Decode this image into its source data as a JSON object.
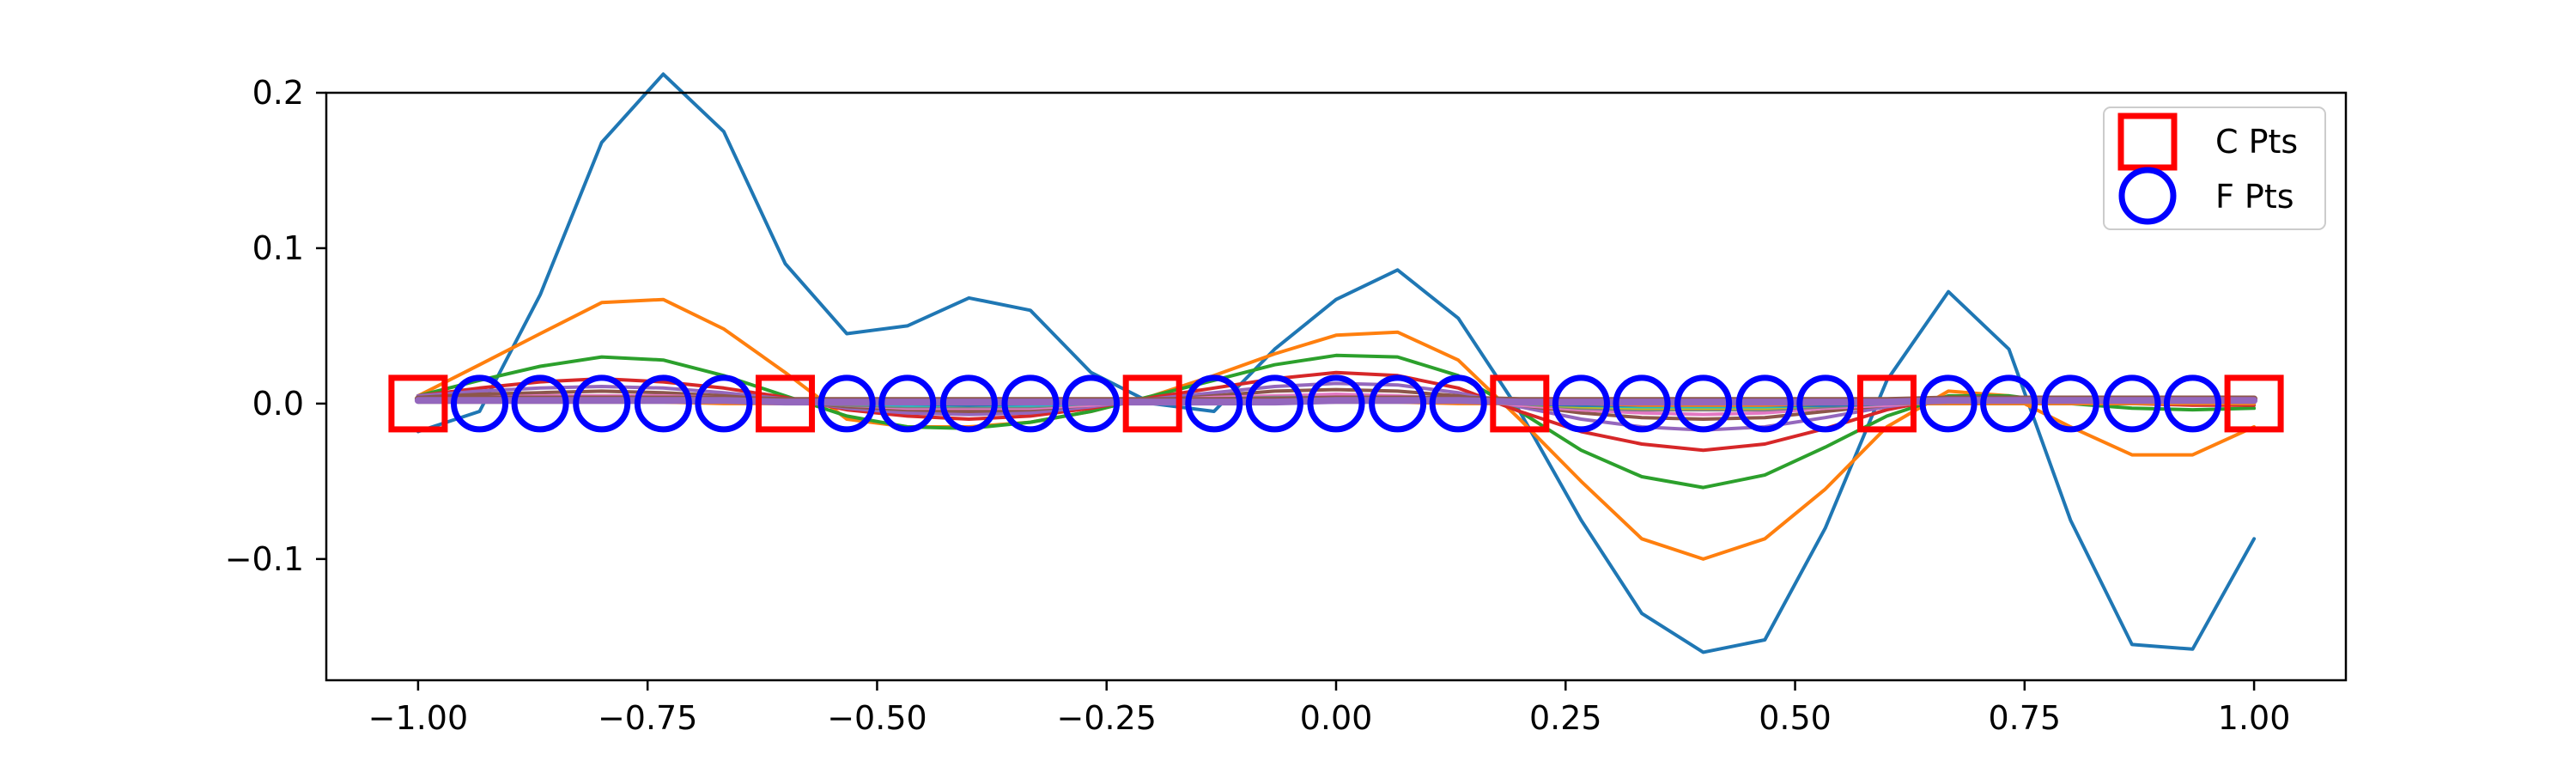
{
  "chart_data": {
    "type": "line",
    "title": "",
    "xlabel": "",
    "ylabel": "",
    "xlim": [
      -1.1,
      1.1
    ],
    "ylim": [
      -0.178,
      0.2
    ],
    "x_ticks": [
      -1.0,
      -0.75,
      -0.5,
      -0.25,
      0.0,
      0.25,
      0.5,
      0.75,
      1.0
    ],
    "x_tick_labels": [
      "−1.00",
      "−0.75",
      "−0.50",
      "−0.25",
      "0.00",
      "0.25",
      "0.50",
      "0.75",
      "1.00"
    ],
    "y_ticks": [
      -0.1,
      0.0,
      0.1,
      0.2
    ],
    "y_tick_labels": [
      "−0.1",
      "0.0",
      "0.1",
      "0.2"
    ],
    "grid": false,
    "legend": {
      "placement": "top-right",
      "entries": [
        {
          "label": "C Pts",
          "marker": "square",
          "color": "#ff0000"
        },
        {
          "label": "F Pts",
          "marker": "circle",
          "color": "#0000ff"
        }
      ]
    },
    "x": [
      -1.0,
      -0.933,
      -0.867,
      -0.8,
      -0.733,
      -0.667,
      -0.6,
      -0.533,
      -0.467,
      -0.4,
      -0.333,
      -0.267,
      -0.2,
      -0.133,
      -0.067,
      0.0,
      0.067,
      0.133,
      0.2,
      0.267,
      0.333,
      0.4,
      0.467,
      0.533,
      0.6,
      0.667,
      0.733,
      0.8,
      0.867,
      0.933,
      1.0
    ],
    "series": [
      {
        "color": "#1f77b4",
        "values": [
          -0.018,
          -0.005,
          0.07,
          0.168,
          0.212,
          0.175,
          0.09,
          0.045,
          0.05,
          0.068,
          0.06,
          0.02,
          0.0,
          -0.005,
          0.035,
          0.067,
          0.086,
          0.055,
          -0.005,
          -0.075,
          -0.135,
          -0.16,
          -0.152,
          -0.08,
          0.015,
          0.072,
          0.035,
          -0.075,
          -0.155,
          -0.158,
          -0.087
        ]
      },
      {
        "color": "#ff7f0e",
        "values": [
          0.005,
          0.025,
          0.045,
          0.065,
          0.067,
          0.048,
          0.02,
          -0.01,
          -0.015,
          -0.015,
          -0.012,
          -0.005,
          0.005,
          0.018,
          0.032,
          0.044,
          0.046,
          0.028,
          -0.01,
          -0.05,
          -0.087,
          -0.1,
          -0.087,
          -0.055,
          -0.015,
          0.008,
          0.005,
          -0.015,
          -0.033,
          -0.033,
          -0.015
        ]
      },
      {
        "color": "#2ca02c",
        "values": [
          0.005,
          0.015,
          0.024,
          0.03,
          0.028,
          0.018,
          0.005,
          -0.008,
          -0.015,
          -0.016,
          -0.012,
          -0.005,
          0.005,
          0.015,
          0.025,
          0.031,
          0.03,
          0.018,
          -0.005,
          -0.03,
          -0.047,
          -0.054,
          -0.046,
          -0.028,
          -0.008,
          0.005,
          0.005,
          0.0,
          -0.003,
          -0.004,
          -0.003
        ]
      },
      {
        "color": "#d62728",
        "values": [
          0.005,
          0.01,
          0.014,
          0.016,
          0.014,
          0.01,
          0.004,
          -0.004,
          -0.008,
          -0.01,
          -0.008,
          -0.003,
          0.004,
          0.01,
          0.016,
          0.02,
          0.018,
          0.01,
          -0.005,
          -0.018,
          -0.026,
          -0.03,
          -0.026,
          -0.016,
          -0.004,
          0.004,
          0.004,
          0.002,
          0.0,
          -0.001,
          -0.001
        ]
      },
      {
        "color": "#9467bd",
        "values": [
          0.005,
          0.008,
          0.01,
          0.011,
          0.01,
          0.007,
          0.003,
          -0.003,
          -0.006,
          -0.007,
          -0.006,
          -0.002,
          0.003,
          0.007,
          0.011,
          0.013,
          0.012,
          0.007,
          -0.002,
          -0.01,
          -0.015,
          -0.017,
          -0.015,
          -0.009,
          -0.002,
          0.003,
          0.003,
          0.002,
          0.001,
          0.0,
          0.0
        ]
      },
      {
        "color": "#8c564b",
        "values": [
          0.004,
          0.006,
          0.007,
          0.008,
          0.007,
          0.005,
          0.002,
          -0.002,
          -0.004,
          -0.005,
          -0.004,
          -0.001,
          0.002,
          0.005,
          0.008,
          0.009,
          0.008,
          0.005,
          -0.001,
          -0.006,
          -0.009,
          -0.01,
          -0.009,
          -0.005,
          -0.001,
          0.002,
          0.002,
          0.001,
          0.0,
          0.0,
          0.0
        ]
      },
      {
        "color": "#e377c2",
        "values": [
          0.003,
          0.004,
          0.005,
          0.005,
          0.005,
          0.004,
          0.002,
          -0.001,
          -0.003,
          -0.003,
          -0.003,
          -0.001,
          0.002,
          0.004,
          0.005,
          0.006,
          0.005,
          0.003,
          -0.001,
          -0.004,
          -0.006,
          -0.007,
          -0.006,
          -0.003,
          -0.001,
          0.001,
          0.001,
          0.001,
          0.0,
          0.0,
          0.0
        ]
      },
      {
        "color": "#7f7f7f",
        "values": [
          0.002,
          0.003,
          0.003,
          0.004,
          0.003,
          0.003,
          0.001,
          -0.001,
          -0.002,
          -0.002,
          -0.002,
          0.0,
          0.001,
          0.003,
          0.004,
          0.004,
          0.004,
          0.002,
          0.0,
          -0.003,
          -0.004,
          -0.004,
          -0.004,
          -0.002,
          0.0,
          0.001,
          0.001,
          0.0,
          0.0,
          0.0,
          0.0
        ]
      },
      {
        "color": "#bcbd22",
        "values": [
          0.002,
          0.002,
          0.002,
          0.003,
          0.002,
          0.002,
          0.001,
          0.0,
          -0.001,
          -0.001,
          -0.001,
          0.0,
          0.001,
          0.002,
          0.002,
          0.003,
          0.003,
          0.002,
          0.0,
          -0.002,
          -0.003,
          -0.003,
          -0.003,
          -0.001,
          0.0,
          0.001,
          0.001,
          0.0,
          0.0,
          0.0,
          0.0
        ]
      },
      {
        "color": "#17becf",
        "values": [
          0.001,
          0.002,
          0.002,
          0.002,
          0.002,
          0.001,
          0.001,
          0.0,
          -0.001,
          -0.001,
          -0.001,
          0.0,
          0.001,
          0.001,
          0.002,
          0.002,
          0.002,
          0.001,
          0.0,
          -0.001,
          -0.002,
          -0.002,
          -0.002,
          -0.001,
          0.0,
          0.0,
          0.0,
          0.0,
          0.0,
          0.0,
          0.0
        ]
      },
      {
        "color": "#1f77b4",
        "values": [
          0.001,
          0.001,
          0.001,
          0.001,
          0.001,
          0.001,
          0.0,
          0.0,
          0.0,
          -0.001,
          0.0,
          0.0,
          0.0,
          0.001,
          0.001,
          0.001,
          0.001,
          0.001,
          0.0,
          -0.001,
          -0.001,
          -0.001,
          -0.001,
          -0.001,
          0.0,
          0.0,
          0.0,
          0.0,
          0.0,
          0.0,
          0.0
        ]
      },
      {
        "color": "#ff7f0e",
        "values": [
          0.001,
          0.001,
          0.001,
          0.001,
          0.001,
          0.0,
          0.0,
          0.0,
          0.0,
          0.0,
          0.0,
          0.0,
          0.0,
          0.001,
          0.001,
          0.001,
          0.001,
          0.0,
          0.0,
          0.0,
          -0.001,
          -0.001,
          -0.001,
          0.0,
          0.0,
          0.0,
          0.0,
          0.0,
          0.0,
          0.0,
          0.0
        ]
      },
      {
        "color": "#8c564b",
        "values": [
          0.003,
          0.003,
          0.003,
          0.003,
          0.003,
          0.003,
          0.002,
          0.002,
          0.002,
          0.002,
          0.002,
          0.002,
          0.002,
          0.002,
          0.002,
          0.003,
          0.003,
          0.003,
          0.002,
          0.002,
          0.002,
          0.002,
          0.002,
          0.002,
          0.002,
          0.003,
          0.003,
          0.003,
          0.003,
          0.003,
          0.003
        ],
        "width": 8
      },
      {
        "color": "#9467bd",
        "values": [
          0.002,
          0.002,
          0.002,
          0.002,
          0.002,
          0.002,
          0.001,
          0.001,
          0.001,
          0.001,
          0.001,
          0.001,
          0.001,
          0.001,
          0.001,
          0.002,
          0.002,
          0.002,
          0.001,
          0.001,
          0.001,
          0.001,
          0.001,
          0.001,
          0.001,
          0.002,
          0.002,
          0.002,
          0.002,
          0.002,
          0.002
        ],
        "width": 8
      }
    ],
    "c_points": {
      "x": [
        -1.0,
        -0.6,
        -0.2,
        0.2,
        0.6,
        1.0
      ],
      "y": [
        0,
        0,
        0,
        0,
        0,
        0
      ]
    },
    "f_points": {
      "x": [
        -0.933,
        -0.867,
        -0.8,
        -0.733,
        -0.667,
        -0.533,
        -0.467,
        -0.4,
        -0.333,
        -0.267,
        -0.133,
        -0.067,
        0.0,
        0.067,
        0.133,
        0.267,
        0.333,
        0.4,
        0.467,
        0.533,
        0.667,
        0.733,
        0.8,
        0.867,
        0.933
      ],
      "y": [
        0,
        0,
        0,
        0,
        0,
        0,
        0,
        0,
        0,
        0,
        0,
        0,
        0,
        0,
        0,
        0,
        0,
        0,
        0,
        0,
        0,
        0,
        0,
        0,
        0
      ]
    }
  }
}
